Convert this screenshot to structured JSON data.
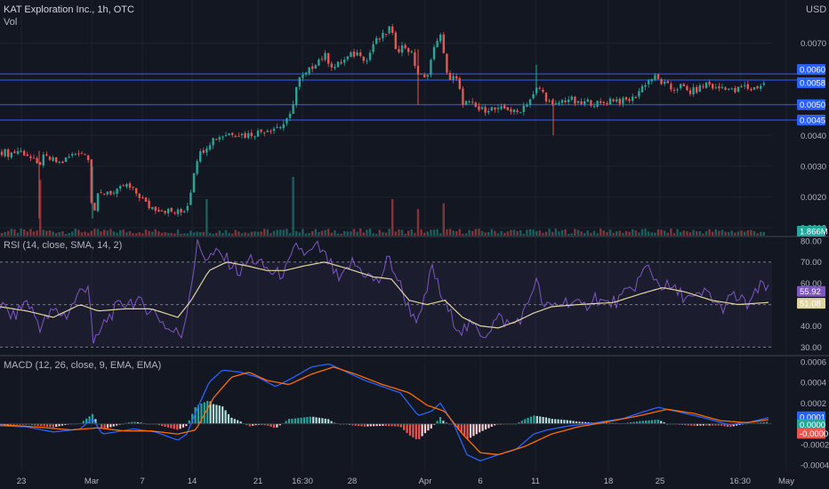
{
  "header": {
    "title": "KAT Exploration Inc., 1h, OTC",
    "vol_label": "Vol",
    "currency": "USD"
  },
  "colors": {
    "background": "#131722",
    "grid": "#1e222d",
    "up": "#26a69a",
    "down": "#ef5350",
    "level_line": "#2962ff",
    "rsi_line": "#7e57c2",
    "rsi_sma": "#e0d5a0",
    "macd_line": "#2962ff",
    "signal_line": "#ff6d00",
    "text": "#b2b5be"
  },
  "chart_data": [
    {
      "type": "candlestick",
      "name": "price",
      "y_ticks": [
        "0.0070",
        "0.0040",
        "0.0030",
        "0.0020",
        "0.0010"
      ],
      "ylim": [
        0.0008,
        0.0082
      ],
      "x_ticks": [
        "23",
        "Mar",
        "7",
        "14",
        "21",
        "16:30",
        "28",
        "Apr",
        "6",
        "11",
        "18",
        "25",
        "16:30",
        "May"
      ],
      "levels": [
        "0.0060",
        "0.0058",
        "0.0050",
        "0.0045"
      ],
      "badges": [
        {
          "text": "0.0060",
          "color": "#2962ff"
        },
        {
          "text": "0.0058",
          "color": "#2962ff"
        },
        {
          "text": "0.0050",
          "color": "#2962ff"
        },
        {
          "text": "0.0045",
          "color": "#2962ff"
        },
        {
          "text": "1.866M",
          "color": "#26a69a"
        }
      ],
      "price_path": [
        [
          0,
          0.0035
        ],
        [
          10,
          0.0034
        ],
        [
          20,
          0.0035
        ],
        [
          30,
          0.0034
        ],
        [
          42,
          0.003
        ],
        [
          50,
          0.0033
        ],
        [
          58,
          0.0032
        ],
        [
          68,
          0.0031
        ],
        [
          78,
          0.0033
        ],
        [
          90,
          0.0035
        ],
        [
          100,
          0.0033
        ],
        [
          104,
          0.0013
        ],
        [
          110,
          0.002
        ],
        [
          120,
          0.0022
        ],
        [
          130,
          0.0021
        ],
        [
          140,
          0.0024
        ],
        [
          150,
          0.0022
        ],
        [
          158,
          0.002
        ],
        [
          166,
          0.0017
        ],
        [
          180,
          0.0016
        ],
        [
          195,
          0.0015
        ],
        [
          205,
          0.0015
        ],
        [
          212,
          0.0018
        ],
        [
          220,
          0.0032
        ],
        [
          230,
          0.0036
        ],
        [
          240,
          0.0039
        ],
        [
          250,
          0.004
        ],
        [
          262,
          0.0041
        ],
        [
          275,
          0.004
        ],
        [
          290,
          0.0041
        ],
        [
          300,
          0.0042
        ],
        [
          315,
          0.0043
        ],
        [
          325,
          0.0045
        ],
        [
          335,
          0.0058
        ],
        [
          345,
          0.006
        ],
        [
          355,
          0.0064
        ],
        [
          365,
          0.0066
        ],
        [
          375,
          0.0062
        ],
        [
          385,
          0.0064
        ],
        [
          395,
          0.0066
        ],
        [
          405,
          0.0067
        ],
        [
          412,
          0.0064
        ],
        [
          420,
          0.007
        ],
        [
          430,
          0.0072
        ],
        [
          438,
          0.0075
        ],
        [
          446,
          0.0068
        ],
        [
          455,
          0.0069
        ],
        [
          462,
          0.0067
        ],
        [
          470,
          0.006
        ],
        [
          478,
          0.0058
        ],
        [
          486,
          0.0066
        ],
        [
          494,
          0.0074
        ],
        [
          500,
          0.0064
        ],
        [
          505,
          0.0058
        ],
        [
          512,
          0.0059
        ],
        [
          520,
          0.0051
        ],
        [
          530,
          0.005
        ],
        [
          540,
          0.0048
        ],
        [
          550,
          0.0049
        ],
        [
          560,
          0.0048
        ],
        [
          570,
          0.0049
        ],
        [
          580,
          0.0047
        ],
        [
          590,
          0.005
        ],
        [
          600,
          0.0053
        ],
        [
          605,
          0.0056
        ],
        [
          612,
          0.0053
        ],
        [
          622,
          0.0049
        ],
        [
          630,
          0.0051
        ],
        [
          640,
          0.0052
        ],
        [
          650,
          0.005
        ],
        [
          662,
          0.0051
        ],
        [
          675,
          0.005
        ],
        [
          688,
          0.0052
        ],
        [
          700,
          0.0051
        ],
        [
          712,
          0.0052
        ],
        [
          725,
          0.0057
        ],
        [
          735,
          0.0059
        ],
        [
          745,
          0.0057
        ],
        [
          755,
          0.0055
        ],
        [
          765,
          0.0056
        ],
        [
          775,
          0.0054
        ],
        [
          785,
          0.0055
        ],
        [
          795,
          0.0057
        ],
        [
          805,
          0.0055
        ],
        [
          815,
          0.0056
        ],
        [
          825,
          0.0054
        ],
        [
          835,
          0.0056
        ],
        [
          845,
          0.0055
        ],
        [
          852,
          0.0056
        ],
        [
          862,
          0.0057
        ]
      ],
      "volume_spikes": [
        [
          44,
          0.95
        ],
        [
          232,
          0.62
        ],
        [
          331,
          1.0
        ],
        [
          440,
          0.62
        ],
        [
          470,
          0.45
        ],
        [
          498,
          0.55
        ]
      ]
    },
    {
      "type": "line",
      "name": "rsi",
      "label": "RSI (14, close, SMA, 14, 2)",
      "y_ticks": [
        "80.00",
        "70.00",
        "60.00",
        "40.00",
        "30.00"
      ],
      "ylim": [
        26,
        82
      ],
      "bands": [
        30,
        50,
        70
      ],
      "badges": [
        {
          "text": "55.92",
          "color": "#7e57c2"
        },
        {
          "text": "51.08",
          "color": "#e0d5a0"
        }
      ],
      "rsi_path": [
        [
          0,
          50
        ],
        [
          15,
          44
        ],
        [
          30,
          52
        ],
        [
          45,
          40
        ],
        [
          60,
          47
        ],
        [
          75,
          45
        ],
        [
          90,
          56
        ],
        [
          100,
          60
        ],
        [
          105,
          30
        ],
        [
          118,
          42
        ],
        [
          130,
          48
        ],
        [
          145,
          52
        ],
        [
          160,
          50
        ],
        [
          175,
          46
        ],
        [
          190,
          38
        ],
        [
          205,
          36
        ],
        [
          215,
          60
        ],
        [
          222,
          78
        ],
        [
          232,
          72
        ],
        [
          245,
          74
        ],
        [
          258,
          70
        ],
        [
          270,
          65
        ],
        [
          282,
          72
        ],
        [
          295,
          68
        ],
        [
          310,
          64
        ],
        [
          322,
          66
        ],
        [
          334,
          78
        ],
        [
          345,
          73
        ],
        [
          357,
          77
        ],
        [
          370,
          70
        ],
        [
          382,
          60
        ],
        [
          395,
          70
        ],
        [
          410,
          65
        ],
        [
          425,
          60
        ],
        [
          437,
          72
        ],
        [
          447,
          62
        ],
        [
          460,
          48
        ],
        [
          472,
          42
        ],
        [
          486,
          68
        ],
        [
          495,
          55
        ],
        [
          505,
          46
        ],
        [
          518,
          38
        ],
        [
          530,
          40
        ],
        [
          545,
          36
        ],
        [
          560,
          44
        ],
        [
          575,
          40
        ],
        [
          590,
          46
        ],
        [
          602,
          62
        ],
        [
          612,
          48
        ],
        [
          625,
          50
        ],
        [
          640,
          52
        ],
        [
          655,
          48
        ],
        [
          668,
          54
        ],
        [
          682,
          50
        ],
        [
          696,
          52
        ],
        [
          712,
          58
        ],
        [
          728,
          68
        ],
        [
          740,
          60
        ],
        [
          752,
          58
        ],
        [
          765,
          55
        ],
        [
          780,
          52
        ],
        [
          795,
          56
        ],
        [
          810,
          48
        ],
        [
          825,
          54
        ],
        [
          840,
          50
        ],
        [
          852,
          56
        ],
        [
          858,
          60
        ],
        [
          864,
          56
        ]
      ],
      "sma_path": [
        [
          0,
          49
        ],
        [
          30,
          47
        ],
        [
          60,
          44
        ],
        [
          90,
          50
        ],
        [
          110,
          47
        ],
        [
          140,
          48
        ],
        [
          170,
          48
        ],
        [
          200,
          44
        ],
        [
          215,
          52
        ],
        [
          235,
          66
        ],
        [
          255,
          70
        ],
        [
          280,
          68
        ],
        [
          300,
          66
        ],
        [
          320,
          66
        ],
        [
          340,
          68
        ],
        [
          365,
          70
        ],
        [
          390,
          67
        ],
        [
          420,
          63
        ],
        [
          440,
          62
        ],
        [
          460,
          52
        ],
        [
          480,
          50
        ],
        [
          500,
          52
        ],
        [
          520,
          44
        ],
        [
          540,
          40
        ],
        [
          560,
          39
        ],
        [
          580,
          42
        ],
        [
          600,
          46
        ],
        [
          620,
          49
        ],
        [
          650,
          50
        ],
        [
          690,
          51
        ],
        [
          720,
          55
        ],
        [
          745,
          58
        ],
        [
          770,
          56
        ],
        [
          800,
          52
        ],
        [
          830,
          50
        ],
        [
          864,
          51
        ]
      ]
    },
    {
      "type": "line",
      "name": "macd",
      "label": "MACD (12, 26, close, 9, EMA, EMA)",
      "y_ticks": [
        "0.0006",
        "0.0004",
        "0.0002",
        "-0.0002",
        "-0.0004"
      ],
      "ylim": [
        -0.00046,
        0.00066
      ],
      "badges": [
        {
          "text": "0.0001",
          "color": "#2962ff"
        },
        {
          "text": "0.0000",
          "color": "#26a69a"
        },
        {
          "text": "-0.0000",
          "color": "#ef5350"
        }
      ],
      "macd_path": [
        [
          0,
          -2e-05
        ],
        [
          30,
          -3e-05
        ],
        [
          60,
          -8e-05
        ],
        [
          90,
          -5e-05
        ],
        [
          104,
          5e-05
        ],
        [
          115,
          -0.0001
        ],
        [
          130,
          -8e-05
        ],
        [
          150,
          -5e-05
        ],
        [
          175,
          -8e-05
        ],
        [
          200,
          -0.00016
        ],
        [
          210,
          -0.0001
        ],
        [
          222,
          0.00015
        ],
        [
          235,
          0.0004
        ],
        [
          250,
          0.00052
        ],
        [
          270,
          0.0005
        ],
        [
          290,
          0.00045
        ],
        [
          310,
          0.00036
        ],
        [
          330,
          0.00045
        ],
        [
          350,
          0.00055
        ],
        [
          370,
          0.00058
        ],
        [
          390,
          0.0005
        ],
        [
          410,
          0.00042
        ],
        [
          430,
          0.00036
        ],
        [
          450,
          0.0003
        ],
        [
          470,
          8e-05
        ],
        [
          485,
          0.00012
        ],
        [
          495,
          0.0002
        ],
        [
          510,
          0.0
        ],
        [
          525,
          -0.0003
        ],
        [
          540,
          -0.00036
        ],
        [
          560,
          -0.0003
        ],
        [
          580,
          -0.00025
        ],
        [
          600,
          -0.0001
        ],
        [
          615,
          -6e-05
        ],
        [
          640,
          -2e-05
        ],
        [
          670,
          1e-05
        ],
        [
          700,
          5e-05
        ],
        [
          725,
          0.00012
        ],
        [
          740,
          0.00016
        ],
        [
          760,
          0.00012
        ],
        [
          790,
          6e-05
        ],
        [
          820,
          -1e-05
        ],
        [
          845,
          2e-05
        ],
        [
          864,
          6e-05
        ]
      ],
      "signal_path": [
        [
          0,
          -1e-05
        ],
        [
          40,
          -3e-05
        ],
        [
          80,
          -6e-05
        ],
        [
          110,
          -4e-05
        ],
        [
          140,
          -7e-05
        ],
        [
          170,
          -7e-05
        ],
        [
          200,
          -0.0001
        ],
        [
          220,
          -6e-05
        ],
        [
          240,
          0.00025
        ],
        [
          260,
          0.00045
        ],
        [
          280,
          0.0005
        ],
        [
          300,
          0.00042
        ],
        [
          325,
          0.00038
        ],
        [
          350,
          0.00048
        ],
        [
          375,
          0.00055
        ],
        [
          400,
          0.00048
        ],
        [
          430,
          0.00038
        ],
        [
          460,
          0.0003
        ],
        [
          480,
          0.00018
        ],
        [
          500,
          0.00012
        ],
        [
          520,
          -0.0001
        ],
        [
          540,
          -0.00028
        ],
        [
          560,
          -0.0003
        ],
        [
          590,
          -0.00022
        ],
        [
          620,
          -0.0001
        ],
        [
          650,
          -3e-05
        ],
        [
          690,
          3e-05
        ],
        [
          720,
          8e-05
        ],
        [
          750,
          0.00014
        ],
        [
          780,
          0.0001
        ],
        [
          810,
          3e-05
        ],
        [
          840,
          1e-05
        ],
        [
          864,
          4e-05
        ]
      ]
    }
  ]
}
